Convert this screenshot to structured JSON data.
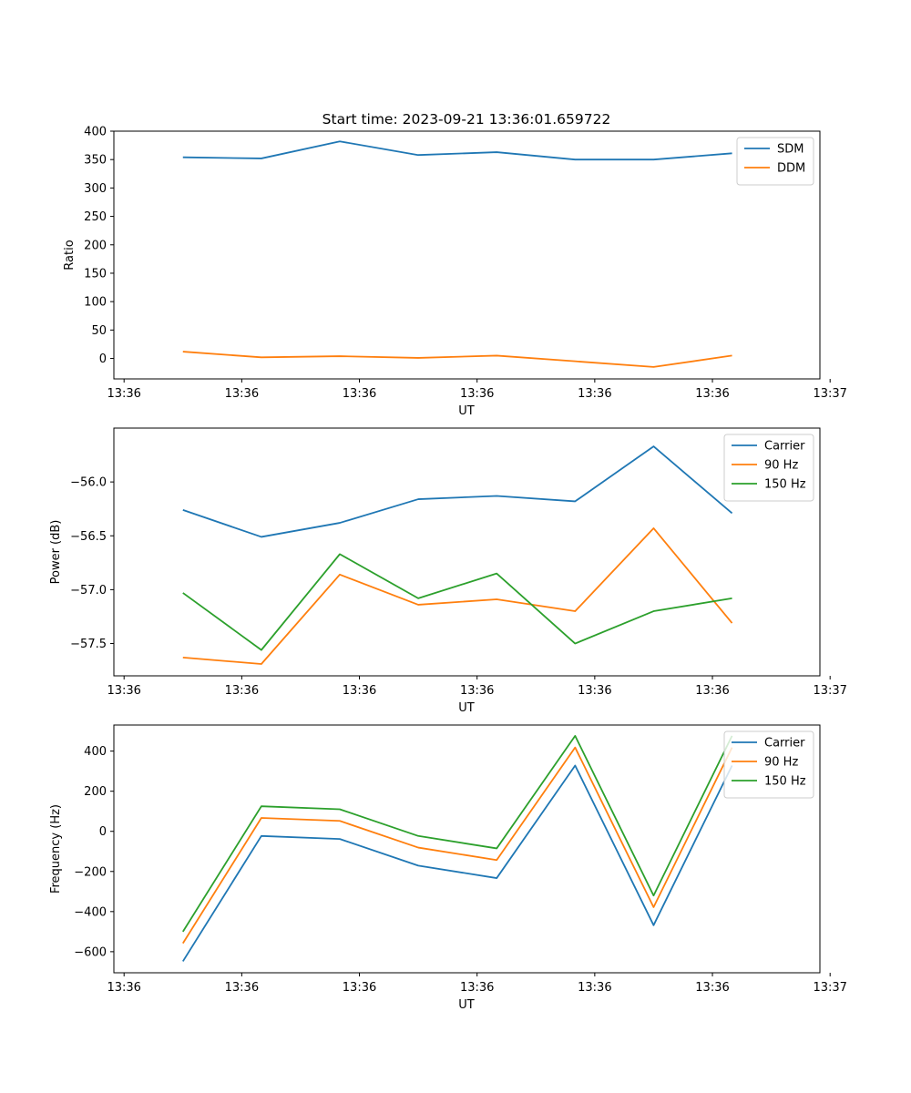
{
  "title": "Start time: 2023-09-21 13:36:01.659722",
  "chart_data": [
    {
      "type": "line",
      "id": "ratio",
      "xlabel": "UT",
      "ylabel": "Ratio",
      "xlim": [
        0.12,
        9.12
      ],
      "ylim": [
        -36,
        400
      ],
      "yticks": [
        0,
        50,
        100,
        150,
        200,
        250,
        300,
        350,
        400
      ],
      "x": [
        1,
        2,
        3,
        4,
        5,
        6,
        7,
        8
      ],
      "xtick_positions": [
        0.25,
        1.75,
        3.25,
        4.75,
        6.25,
        7.75,
        9.25
      ],
      "xtick_labels": [
        "13:36",
        "13:36",
        "13:36",
        "13:36",
        "13:36",
        "13:36",
        "13:37"
      ],
      "legend_loc": "upper right",
      "series": [
        {
          "name": "SDM",
          "color": "#1f77b4",
          "values": [
            354,
            352,
            382,
            358,
            363,
            350,
            350,
            361
          ]
        },
        {
          "name": "DDM",
          "color": "#ff7f0e",
          "values": [
            12,
            2,
            4,
            1,
            5,
            -5,
            -15,
            5
          ]
        }
      ]
    },
    {
      "type": "line",
      "id": "power",
      "xlabel": "UT",
      "ylabel": "Power (dB)",
      "xlim": [
        0.12,
        9.12
      ],
      "ylim": [
        -57.8,
        -55.5
      ],
      "yticks": [
        -57.5,
        -57.0,
        -56.5,
        -56.0
      ],
      "ytick_labels": [
        "−57.5",
        "−57.0",
        "−56.5",
        "−56.0"
      ],
      "x": [
        1,
        2,
        3,
        4,
        5,
        6,
        7,
        8
      ],
      "xtick_positions": [
        0.25,
        1.75,
        3.25,
        4.75,
        6.25,
        7.75,
        9.25
      ],
      "xtick_labels": [
        "13:36",
        "13:36",
        "13:36",
        "13:36",
        "13:36",
        "13:36",
        "13:37"
      ],
      "legend_loc": "upper right",
      "series": [
        {
          "name": "Carrier",
          "color": "#1f77b4",
          "values": [
            -56.26,
            -56.51,
            -56.38,
            -56.16,
            -56.13,
            -56.18,
            -55.67,
            -56.29
          ]
        },
        {
          "name": "90 Hz",
          "color": "#ff7f0e",
          "values": [
            -57.63,
            -57.69,
            -56.86,
            -57.14,
            -57.09,
            -57.2,
            -56.43,
            -57.31
          ]
        },
        {
          "name": "150 Hz",
          "color": "#2ca02c",
          "values": [
            -57.03,
            -57.56,
            -56.67,
            -57.08,
            -56.85,
            -57.5,
            -57.2,
            -57.08
          ]
        }
      ]
    },
    {
      "type": "line",
      "id": "frequency",
      "xlabel": "UT",
      "ylabel": "Frequency (Hz)",
      "xlim": [
        0.12,
        9.12
      ],
      "ylim": [
        -705,
        530
      ],
      "yticks": [
        -600,
        -400,
        -200,
        0,
        200,
        400
      ],
      "ytick_labels": [
        "−600",
        "−400",
        "−200",
        "0",
        "200",
        "400"
      ],
      "x": [
        1,
        2,
        3,
        4,
        5,
        6,
        7,
        8
      ],
      "xtick_positions": [
        0.25,
        1.75,
        3.25,
        4.75,
        6.25,
        7.75,
        9.25
      ],
      "xtick_labels": [
        "13:36",
        "13:36",
        "13:36",
        "13:36",
        "13:36",
        "13:36",
        "13:37"
      ],
      "legend_loc": "upper right",
      "series": [
        {
          "name": "Carrier",
          "color": "#1f77b4",
          "values": [
            -648,
            -23,
            -38,
            -171,
            -233,
            328,
            -468,
            328
          ]
        },
        {
          "name": "90 Hz",
          "color": "#ff7f0e",
          "values": [
            -558,
            67,
            52,
            -81,
            -143,
            418,
            -378,
            418
          ]
        },
        {
          "name": "150 Hz",
          "color": "#2ca02c",
          "values": [
            -500,
            125,
            110,
            -23,
            -85,
            476,
            -320,
            476
          ]
        }
      ]
    }
  ]
}
